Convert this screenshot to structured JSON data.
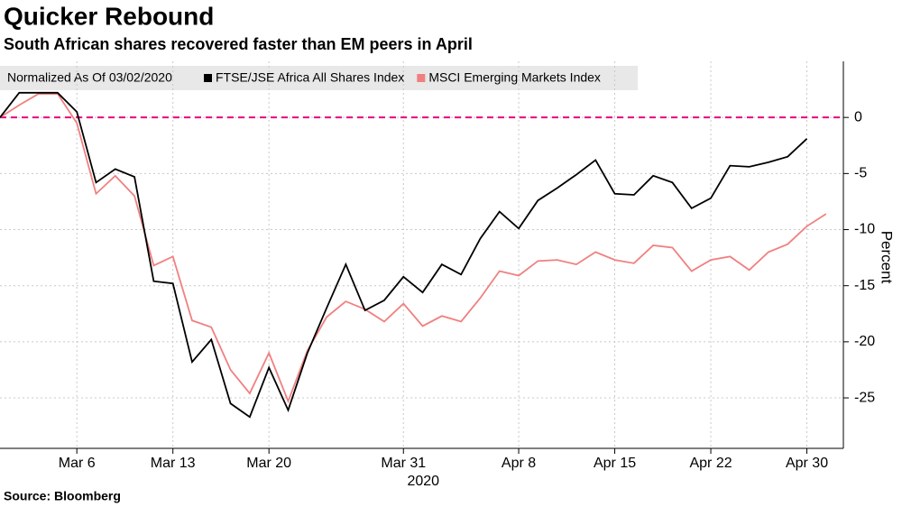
{
  "chart_data": {
    "type": "line",
    "title": "Quicker Rebound",
    "subtitle": "South African shares recovered faster than EM peers in April",
    "legend_title": "Normalized As Of 03/02/2020",
    "y_label": "Percent",
    "x_annotation": "2020",
    "source": "Source: Bloomberg",
    "categories": [
      null,
      null,
      null,
      null,
      "Mar 6",
      null,
      null,
      null,
      null,
      "Mar 13",
      null,
      null,
      null,
      null,
      "Mar 20",
      null,
      null,
      null,
      null,
      null,
      null,
      "Mar 31",
      null,
      null,
      null,
      null,
      null,
      "Apr 8",
      null,
      null,
      null,
      null,
      "Apr 15",
      null,
      null,
      null,
      null,
      "Apr 22",
      null,
      null,
      null,
      null,
      "Apr 30",
      null
    ],
    "series": [
      {
        "name": "FTSE/JSE Africa All Shares Index",
        "color": "#000000",
        "values": [
          0,
          2.2,
          2.2,
          2.2,
          0.5,
          -5.8,
          -4.6,
          -5.3,
          -14.6,
          -14.8,
          -21.8,
          -19.8,
          -25.5,
          -26.7,
          -22.3,
          -26.1,
          -21,
          -17,
          -13.1,
          -17.2,
          -16.3,
          -14.2,
          -15.6,
          -13.1,
          -14,
          -10.8,
          -8.4,
          -9.9,
          -7.4,
          -6.3,
          -5.1,
          -3.8,
          -6.8,
          -6.9,
          -5.2,
          -5.8,
          -8.1,
          -7.2,
          -4.3,
          -4.4,
          -4,
          -3.5,
          -1.9,
          null
        ]
      },
      {
        "name": "MSCI Emerging Markets Index",
        "color": "#f08080",
        "values": [
          0,
          1.1,
          2.1,
          2.1,
          -0.5,
          -6.8,
          -5.2,
          -7,
          -13.2,
          -12.4,
          -18.1,
          -18.7,
          -22.5,
          -24.6,
          -21,
          -25.3,
          -20.8,
          -17.8,
          -16.4,
          -17.1,
          -18.2,
          -16.6,
          -18.6,
          -17.7,
          -18.2,
          -16.1,
          -13.7,
          -14.1,
          -12.8,
          -12.7,
          -13.1,
          -12,
          -12.7,
          -13,
          -11.4,
          -11.6,
          -13.7,
          -12.7,
          -12.4,
          -13.6,
          -12,
          -11.3,
          -9.7,
          -8.6
        ]
      }
    ],
    "ylim": [
      -29.5,
      5
    ],
    "yticks": [
      0,
      -5,
      -10,
      -15,
      -20,
      -25
    ],
    "reference_line": {
      "value": 0,
      "color": "#e6007e"
    },
    "grid": true
  }
}
